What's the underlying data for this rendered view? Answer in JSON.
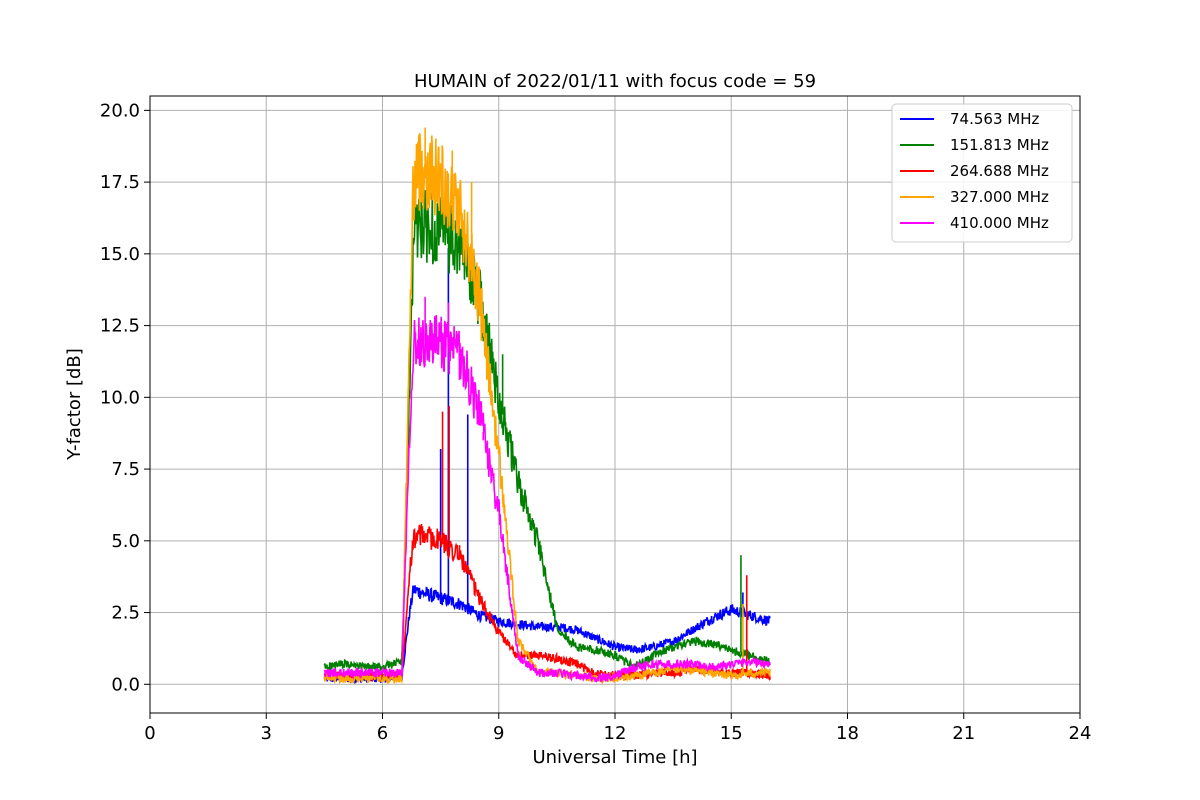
{
  "chart_data": {
    "type": "line",
    "title": "HUMAIN of 2022/01/11 with focus code = 59",
    "xlabel": "Universal Time [h]",
    "ylabel": "Y-factor [dB]",
    "xlim": [
      0,
      24
    ],
    "ylim": [
      -1.0,
      20.5
    ],
    "xticks": [
      0,
      3,
      6,
      9,
      12,
      15,
      18,
      21,
      24
    ],
    "xtick_labels": [
      "0",
      "3",
      "6",
      "9",
      "12",
      "15",
      "18",
      "21",
      "24"
    ],
    "yticks": [
      0.0,
      2.5,
      5.0,
      7.5,
      10.0,
      12.5,
      15.0,
      17.5,
      20.0
    ],
    "ytick_labels": [
      "0.0",
      "2.5",
      "5.0",
      "7.5",
      "10.0",
      "12.5",
      "15.0",
      "17.5",
      "20.0"
    ],
    "grid": true,
    "legend_position": "top-right",
    "series": [
      {
        "name": "  74.563 MHz",
        "color": "#0000ff",
        "x": [
          4.5,
          5.0,
          5.5,
          6.0,
          6.5,
          6.7,
          6.8,
          7.0,
          7.5,
          8.0,
          8.5,
          9.0,
          9.5,
          10.0,
          10.5,
          11.0,
          11.5,
          12.0,
          12.5,
          13.0,
          13.5,
          14.0,
          14.5,
          15.0,
          15.5,
          16.0
        ],
        "y": [
          0.2,
          0.2,
          0.2,
          0.2,
          0.3,
          2.5,
          3.3,
          3.2,
          3.0,
          2.8,
          2.4,
          2.2,
          2.1,
          2.0,
          2.0,
          1.9,
          1.6,
          1.3,
          1.2,
          1.3,
          1.5,
          1.9,
          2.3,
          2.6,
          2.4,
          2.2
        ],
        "spikes": [
          [
            7.5,
            8.2
          ],
          [
            7.7,
            15.2
          ],
          [
            8.2,
            9.4
          ],
          [
            15.3,
            3.2
          ]
        ]
      },
      {
        "name": "151.813 MHz",
        "color": "#008000",
        "x": [
          4.5,
          5.0,
          5.5,
          6.0,
          6.5,
          6.7,
          6.8,
          7.0,
          7.5,
          8.0,
          8.5,
          9.0,
          9.5,
          10.0,
          10.5,
          11.0,
          11.5,
          12.0,
          12.5,
          13.0,
          13.5,
          14.0,
          14.5,
          15.0,
          15.5,
          16.0
        ],
        "y": [
          0.6,
          0.7,
          0.6,
          0.6,
          0.8,
          10.0,
          15.8,
          16.0,
          15.8,
          15.2,
          13.5,
          10.0,
          7.0,
          5.0,
          2.0,
          1.3,
          1.2,
          1.0,
          0.6,
          1.0,
          1.3,
          1.5,
          1.4,
          1.2,
          1.0,
          0.8
        ],
        "spikes": [
          [
            7.0,
            17.2
          ],
          [
            9.1,
            11.5
          ],
          [
            15.25,
            4.5
          ]
        ]
      },
      {
        "name": "264.688 MHz",
        "color": "#ff0000",
        "x": [
          4.5,
          5.0,
          5.5,
          6.0,
          6.5,
          6.7,
          6.8,
          7.0,
          7.5,
          8.0,
          8.5,
          9.0,
          9.5,
          10.0,
          10.5,
          11.0,
          11.5,
          12.0,
          12.5,
          13.0,
          13.5,
          14.0,
          14.5,
          15.0,
          15.5,
          16.0
        ],
        "y": [
          0.3,
          0.3,
          0.3,
          0.3,
          0.3,
          4.0,
          5.1,
          5.2,
          5.0,
          4.5,
          3.0,
          1.8,
          1.0,
          1.0,
          0.9,
          0.7,
          0.4,
          0.3,
          0.3,
          0.4,
          0.4,
          0.5,
          0.5,
          0.4,
          0.4,
          0.3
        ],
        "spikes": [
          [
            7.55,
            9.5
          ],
          [
            7.72,
            9.7
          ],
          [
            15.4,
            3.8
          ]
        ]
      },
      {
        "name": "327.000 MHz",
        "color": "#ffa500",
        "x": [
          4.5,
          5.0,
          5.5,
          6.0,
          6.5,
          6.7,
          6.8,
          7.0,
          7.5,
          8.0,
          8.5,
          9.0,
          9.5,
          10.0,
          10.5,
          11.0,
          11.5,
          12.0,
          12.5,
          13.0,
          13.5,
          14.0,
          14.5,
          15.0,
          15.5,
          16.0
        ],
        "y": [
          0.2,
          0.2,
          0.2,
          0.2,
          0.2,
          12.0,
          17.5,
          18.0,
          17.6,
          16.5,
          13.5,
          8.0,
          1.5,
          0.5,
          0.4,
          0.3,
          0.2,
          0.2,
          0.3,
          0.4,
          0.5,
          0.5,
          0.4,
          0.3,
          0.4,
          0.4
        ],
        "spikes": [
          [
            7.1,
            19.4
          ],
          [
            7.8,
            18.6
          ],
          [
            8.3,
            17.5
          ],
          [
            15.3,
            2.8
          ]
        ]
      },
      {
        "name": "410.000 MHz",
        "color": "#ff00ff",
        "x": [
          4.5,
          5.0,
          5.5,
          6.0,
          6.5,
          6.7,
          6.8,
          7.0,
          7.5,
          8.0,
          8.5,
          9.0,
          9.5,
          10.0,
          10.5,
          11.0,
          11.5,
          12.0,
          12.5,
          13.0,
          13.5,
          14.0,
          14.5,
          15.0,
          15.5,
          16.0
        ],
        "y": [
          0.4,
          0.4,
          0.4,
          0.4,
          0.4,
          9.0,
          11.9,
          12.0,
          11.9,
          11.5,
          9.5,
          6.0,
          1.0,
          0.4,
          0.4,
          0.3,
          0.2,
          0.3,
          0.6,
          0.7,
          0.7,
          0.7,
          0.6,
          0.7,
          0.8,
          0.7
        ],
        "spikes": [
          [
            7.1,
            13.5
          ],
          [
            7.7,
            13.3
          ],
          [
            8.6,
            8.5
          ]
        ]
      }
    ]
  }
}
